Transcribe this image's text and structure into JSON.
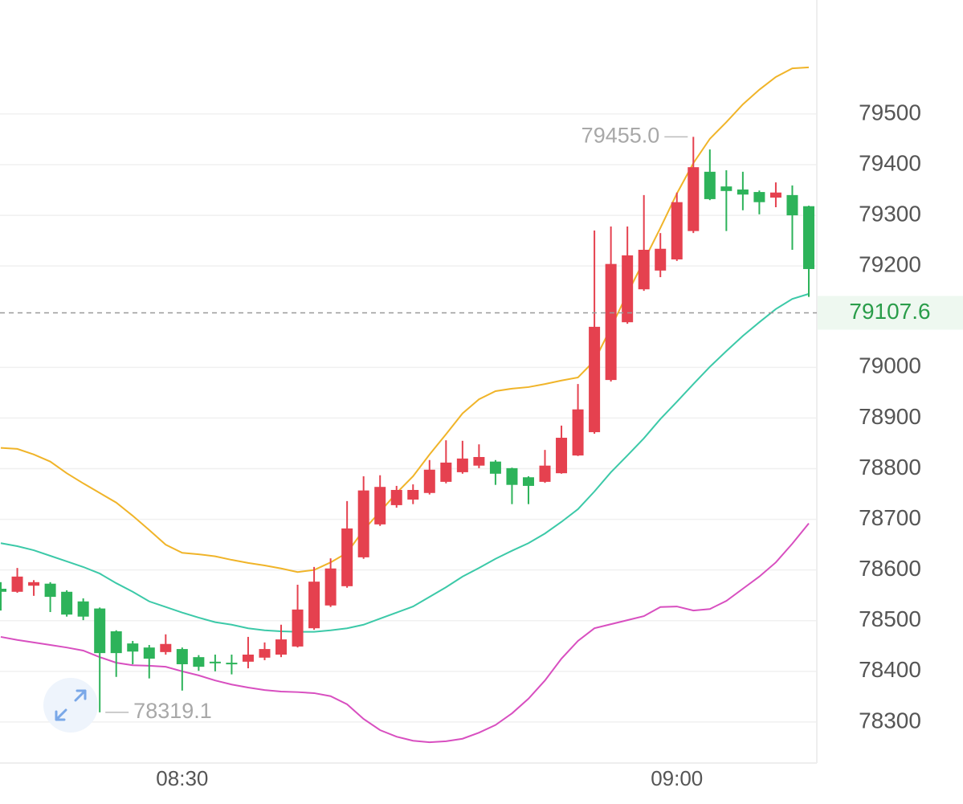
{
  "chart_data": {
    "type": "candlestick",
    "categories": [
      null,
      null,
      null,
      null,
      null,
      null,
      null,
      null,
      null,
      null,
      null,
      "08:30",
      null,
      null,
      null,
      null,
      null,
      null,
      null,
      null,
      null,
      null,
      null,
      null,
      null,
      null,
      null,
      null,
      null,
      null,
      null,
      null,
      null,
      null,
      null,
      null,
      null,
      null,
      null,
      null,
      null,
      "09:00",
      null,
      null,
      null,
      null,
      null,
      null,
      null,
      null
    ],
    "open": [
      78563,
      78557,
      78569,
      78573,
      78557,
      78538,
      78524,
      78479,
      78455,
      78447,
      78438,
      78444,
      78428,
      78419,
      78417,
      78419,
      78427,
      78433,
      78449,
      78485,
      78530,
      78568,
      78625,
      78690,
      78728,
      78739,
      78752,
      78774,
      78793,
      78806,
      78814,
      78801,
      78783,
      78774,
      78791,
      78826,
      78872,
      78975,
      79089,
      79154,
      79191,
      79213,
      79269,
      79386,
      79357,
      79351,
      79346,
      79335,
      79340,
      79318
    ],
    "high": [
      78576,
      78604,
      78580,
      78576,
      78560,
      78544,
      78526,
      78481,
      78460,
      78452,
      78473,
      78447,
      78432,
      78433,
      78433,
      78468,
      78457,
      78492,
      78571,
      78606,
      78623,
      78736,
      78785,
      78787,
      78766,
      78769,
      78817,
      78856,
      78855,
      78848,
      78817,
      78802,
      78785,
      78837,
      78885,
      78967,
      79270,
      79278,
      79278,
      79340,
      79265,
      79345,
      79455,
      79430,
      79389,
      79386,
      79349,
      79365,
      79359,
      79319
    ],
    "low": [
      78520,
      78555,
      78549,
      78517,
      78508,
      78501,
      78319.1,
      78389,
      78414,
      78386,
      78433,
      78362,
      78401,
      78400,
      78394,
      78406,
      78422,
      78428,
      78447,
      78482,
      78527,
      78565,
      78622,
      78687,
      78723,
      78730,
      78749,
      78771,
      78790,
      78801,
      78768,
      78730,
      78730,
      78772,
      78790,
      78825,
      78869,
      78972,
      79086,
      79151,
      79178,
      79210,
      79265,
      79330,
      79269,
      79310,
      79302,
      79316,
      79232,
      79139
    ],
    "close": [
      78557,
      78587,
      78576,
      78547,
      78512,
      78508,
      78436,
      78436,
      78439,
      78425,
      78454,
      78414,
      78409,
      78416,
      78414,
      78433,
      78444,
      78463,
      78522,
      78577,
      78603,
      78682,
      78757,
      78764,
      78758,
      78758,
      78798,
      78812,
      78820,
      78823,
      78790,
      78768,
      78766,
      78806,
      78861,
      78917,
      79080,
      79204,
      79221,
      79232,
      79234,
      79326,
      79395,
      79332,
      79348,
      79341,
      79326,
      79345,
      79300,
      79194
    ],
    "up_color": "#e5414f",
    "down_color": "#2db35a",
    "lines": [
      {
        "color": "#f0b429",
        "values": [
          78841,
          78839,
          78828,
          78814,
          78791,
          78771,
          78752,
          78733,
          78707,
          78679,
          78650,
          78634,
          78631,
          78627,
          78620,
          78614,
          78609,
          78603,
          78596,
          78600,
          78615,
          78634,
          78679,
          78715,
          78752,
          78785,
          78828,
          78868,
          78909,
          78937,
          78953,
          78958,
          78961,
          78967,
          78974,
          78980,
          79013,
          79078,
          79146,
          79210,
          79275,
          79343,
          79403,
          79451,
          79484,
          79519,
          79548,
          79573,
          79590,
          79592
        ]
      },
      {
        "color": "#3cc9a8",
        "values": [
          78653,
          78647,
          78639,
          78628,
          78617,
          78606,
          78593,
          78574,
          78557,
          78538,
          78527,
          78516,
          78506,
          78497,
          78492,
          78485,
          78481,
          78479,
          78478,
          78478,
          78481,
          78485,
          78492,
          78504,
          78516,
          78528,
          78547,
          78566,
          78587,
          78604,
          78622,
          78638,
          78653,
          78672,
          78695,
          78720,
          78755,
          78793,
          78826,
          78860,
          78898,
          78932,
          78967,
          79001,
          79032,
          79062,
          79089,
          79115,
          79135,
          79145
        ]
      },
      {
        "color": "#d84fc0",
        "values": [
          78468,
          78462,
          78457,
          78452,
          78447,
          78441,
          78428,
          78417,
          78412,
          78411,
          78409,
          78400,
          78392,
          78382,
          78374,
          78368,
          78363,
          78360,
          78359,
          78357,
          78351,
          78335,
          78306,
          78284,
          78271,
          78263,
          78260,
          78262,
          78267,
          78279,
          78294,
          78317,
          78346,
          78382,
          78425,
          78460,
          78485,
          78493,
          78501,
          78509,
          78527,
          78528,
          78520,
          78523,
          78539,
          78563,
          78587,
          78615,
          78652,
          78692
        ]
      }
    ],
    "ylim": [
      78219,
      79725
    ],
    "yticks": [
      78300,
      78400,
      78500,
      78600,
      78700,
      78800,
      78900,
      79000,
      79200,
      79300,
      79400,
      79500
    ],
    "grid": true,
    "high_label": {
      "value": 79455,
      "label": "79455.0"
    },
    "low_label": 78319.1,
    "last_price": 79107.6
  }
}
